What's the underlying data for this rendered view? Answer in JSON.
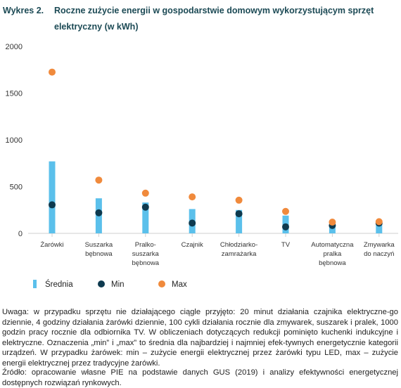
{
  "figure": {
    "label": "Wykres 2.",
    "title": "Roczne zużycie energii w gospodarstwie domowym wykorzystującym sprzęt elektryczny (w kWh)"
  },
  "chart_data": {
    "type": "bar",
    "categories": [
      [
        "Żarówki"
      ],
      [
        "Suszarka",
        "bębnowa"
      ],
      [
        "Pralko-",
        "suszarka",
        "bębnowa"
      ],
      [
        "Czajnik"
      ],
      [
        "Chłodziarko-",
        "zamrażarka"
      ],
      [
        "TV"
      ],
      [
        "Automatyczna",
        "pralka",
        "bębnowa"
      ],
      [
        "Zmywarka",
        "do naczyń"
      ]
    ],
    "series": [
      {
        "name": "Średnia",
        "marker": "bar",
        "color": "#5bc0eb",
        "values": [
          770,
          375,
          330,
          260,
          250,
          190,
          80,
          90
        ]
      },
      {
        "name": "Min",
        "marker": "dot",
        "color": "#0e3a4f",
        "values": [
          305,
          220,
          280,
          110,
          210,
          70,
          85,
          110
        ]
      },
      {
        "name": "Max",
        "marker": "dot",
        "color": "#f08a3c",
        "values": [
          1725,
          570,
          430,
          390,
          355,
          235,
          120,
          125
        ]
      }
    ],
    "ylim": [
      0,
      2000
    ],
    "yticks": [
      0,
      500,
      1000,
      1500,
      2000
    ],
    "grid": false,
    "legend_position": "bottom-left"
  },
  "notes": {
    "usage": "Uwaga: w przypadku sprzętu nie działającego ciągle przyjęto: 20 minut działania czajnika elektryczne-go dziennie, 4 godziny działania żarówki dziennie, 100 cykli działania rocznie dla zmywarek, suszarek i pralek, 1000 godzin pracy rocznie dla odbiornika TV. W obliczeniach dotyczących redukcji pominięto kuchenki indukcyjne i elektryczne. Oznaczenia „min” i „max” to średnia dla najbardziej i najmniej efek-tywnych energetycznie kategorii urządzeń. W przypadku żarówek: min – zużycie energii elektrycznej przez żarówki typu LED, max – zużycie energii elektrycznej przez tradycyjne żarówki.",
    "source": "Źródło: opracowanie własne PIE na podstawie danych GUS (2019) i analizy efektywności energetycznej dostępnych rozwiązań rynkowych."
  }
}
